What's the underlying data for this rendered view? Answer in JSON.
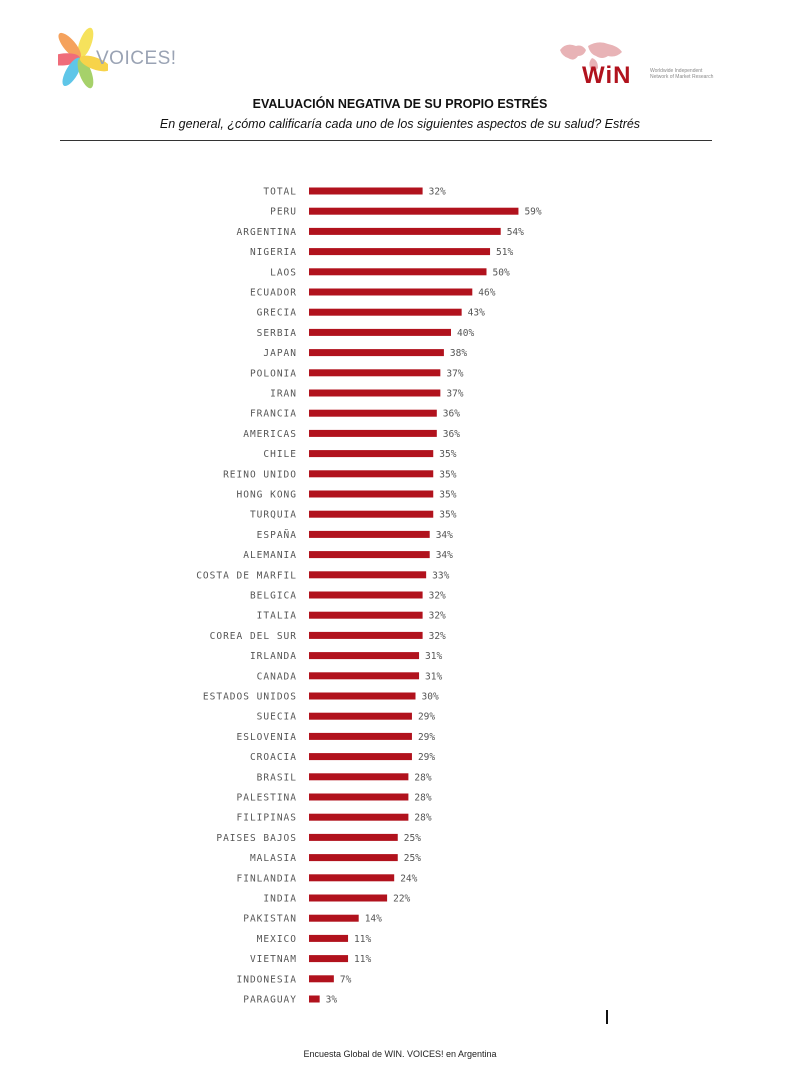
{
  "header": {
    "logo_left_text": "VOICES!",
    "logo_right_text": "WiN",
    "logo_right_tagline": "Worldwide Independent Network of Market Research"
  },
  "title": "EVALUACIÓN NEGATIVA DE SU PROPIO ESTRÉS",
  "subtitle": "En general, ¿cómo calificaría cada uno de los siguientes aspectos de su salud? Estrés",
  "footer": "Encuesta Global de WIN. VOICES! en Argentina",
  "colors": {
    "bar": "#b1121d",
    "text": "#555555"
  },
  "chart_data": {
    "type": "bar",
    "orientation": "horizontal",
    "title": "EVALUACIÓN NEGATIVA DE SU PROPIO ESTRÉS",
    "xlabel": "",
    "ylabel": "",
    "xlim": [
      0,
      100
    ],
    "grid": false,
    "legend": "none",
    "value_suffix": "%",
    "categories": [
      "TOTAL",
      "PERU",
      "ARGENTINA",
      "NIGERIA",
      "LAOS",
      "ECUADOR",
      "GRECIA",
      "SERBIA",
      "JAPAN",
      "POLONIA",
      "IRAN",
      "FRANCIA",
      "AMERICAS",
      "CHILE",
      "REINO UNIDO",
      "HONG KONG",
      "TURQUIA",
      "ESPAÑA",
      "ALEMANIA",
      "COSTA DE MARFIL",
      "BELGICA",
      "ITALIA",
      "COREA DEL SUR",
      "IRLANDA",
      "CANADA",
      "ESTADOS UNIDOS",
      "SUECIA",
      "ESLOVENIA",
      "CROACIA",
      "BRASIL",
      "PALESTINA",
      "FILIPINAS",
      "PAISES BAJOS",
      "MALASIA",
      "FINLANDIA",
      "INDIA",
      "PAKISTAN",
      "MEXICO",
      "VIETNAM",
      "INDONESIA",
      "PARAGUAY"
    ],
    "values": [
      32,
      59,
      54,
      51,
      50,
      46,
      43,
      40,
      38,
      37,
      37,
      36,
      36,
      35,
      35,
      35,
      35,
      34,
      34,
      33,
      32,
      32,
      32,
      31,
      31,
      30,
      29,
      29,
      29,
      28,
      28,
      28,
      25,
      25,
      24,
      22,
      14,
      11,
      11,
      7,
      3
    ]
  }
}
